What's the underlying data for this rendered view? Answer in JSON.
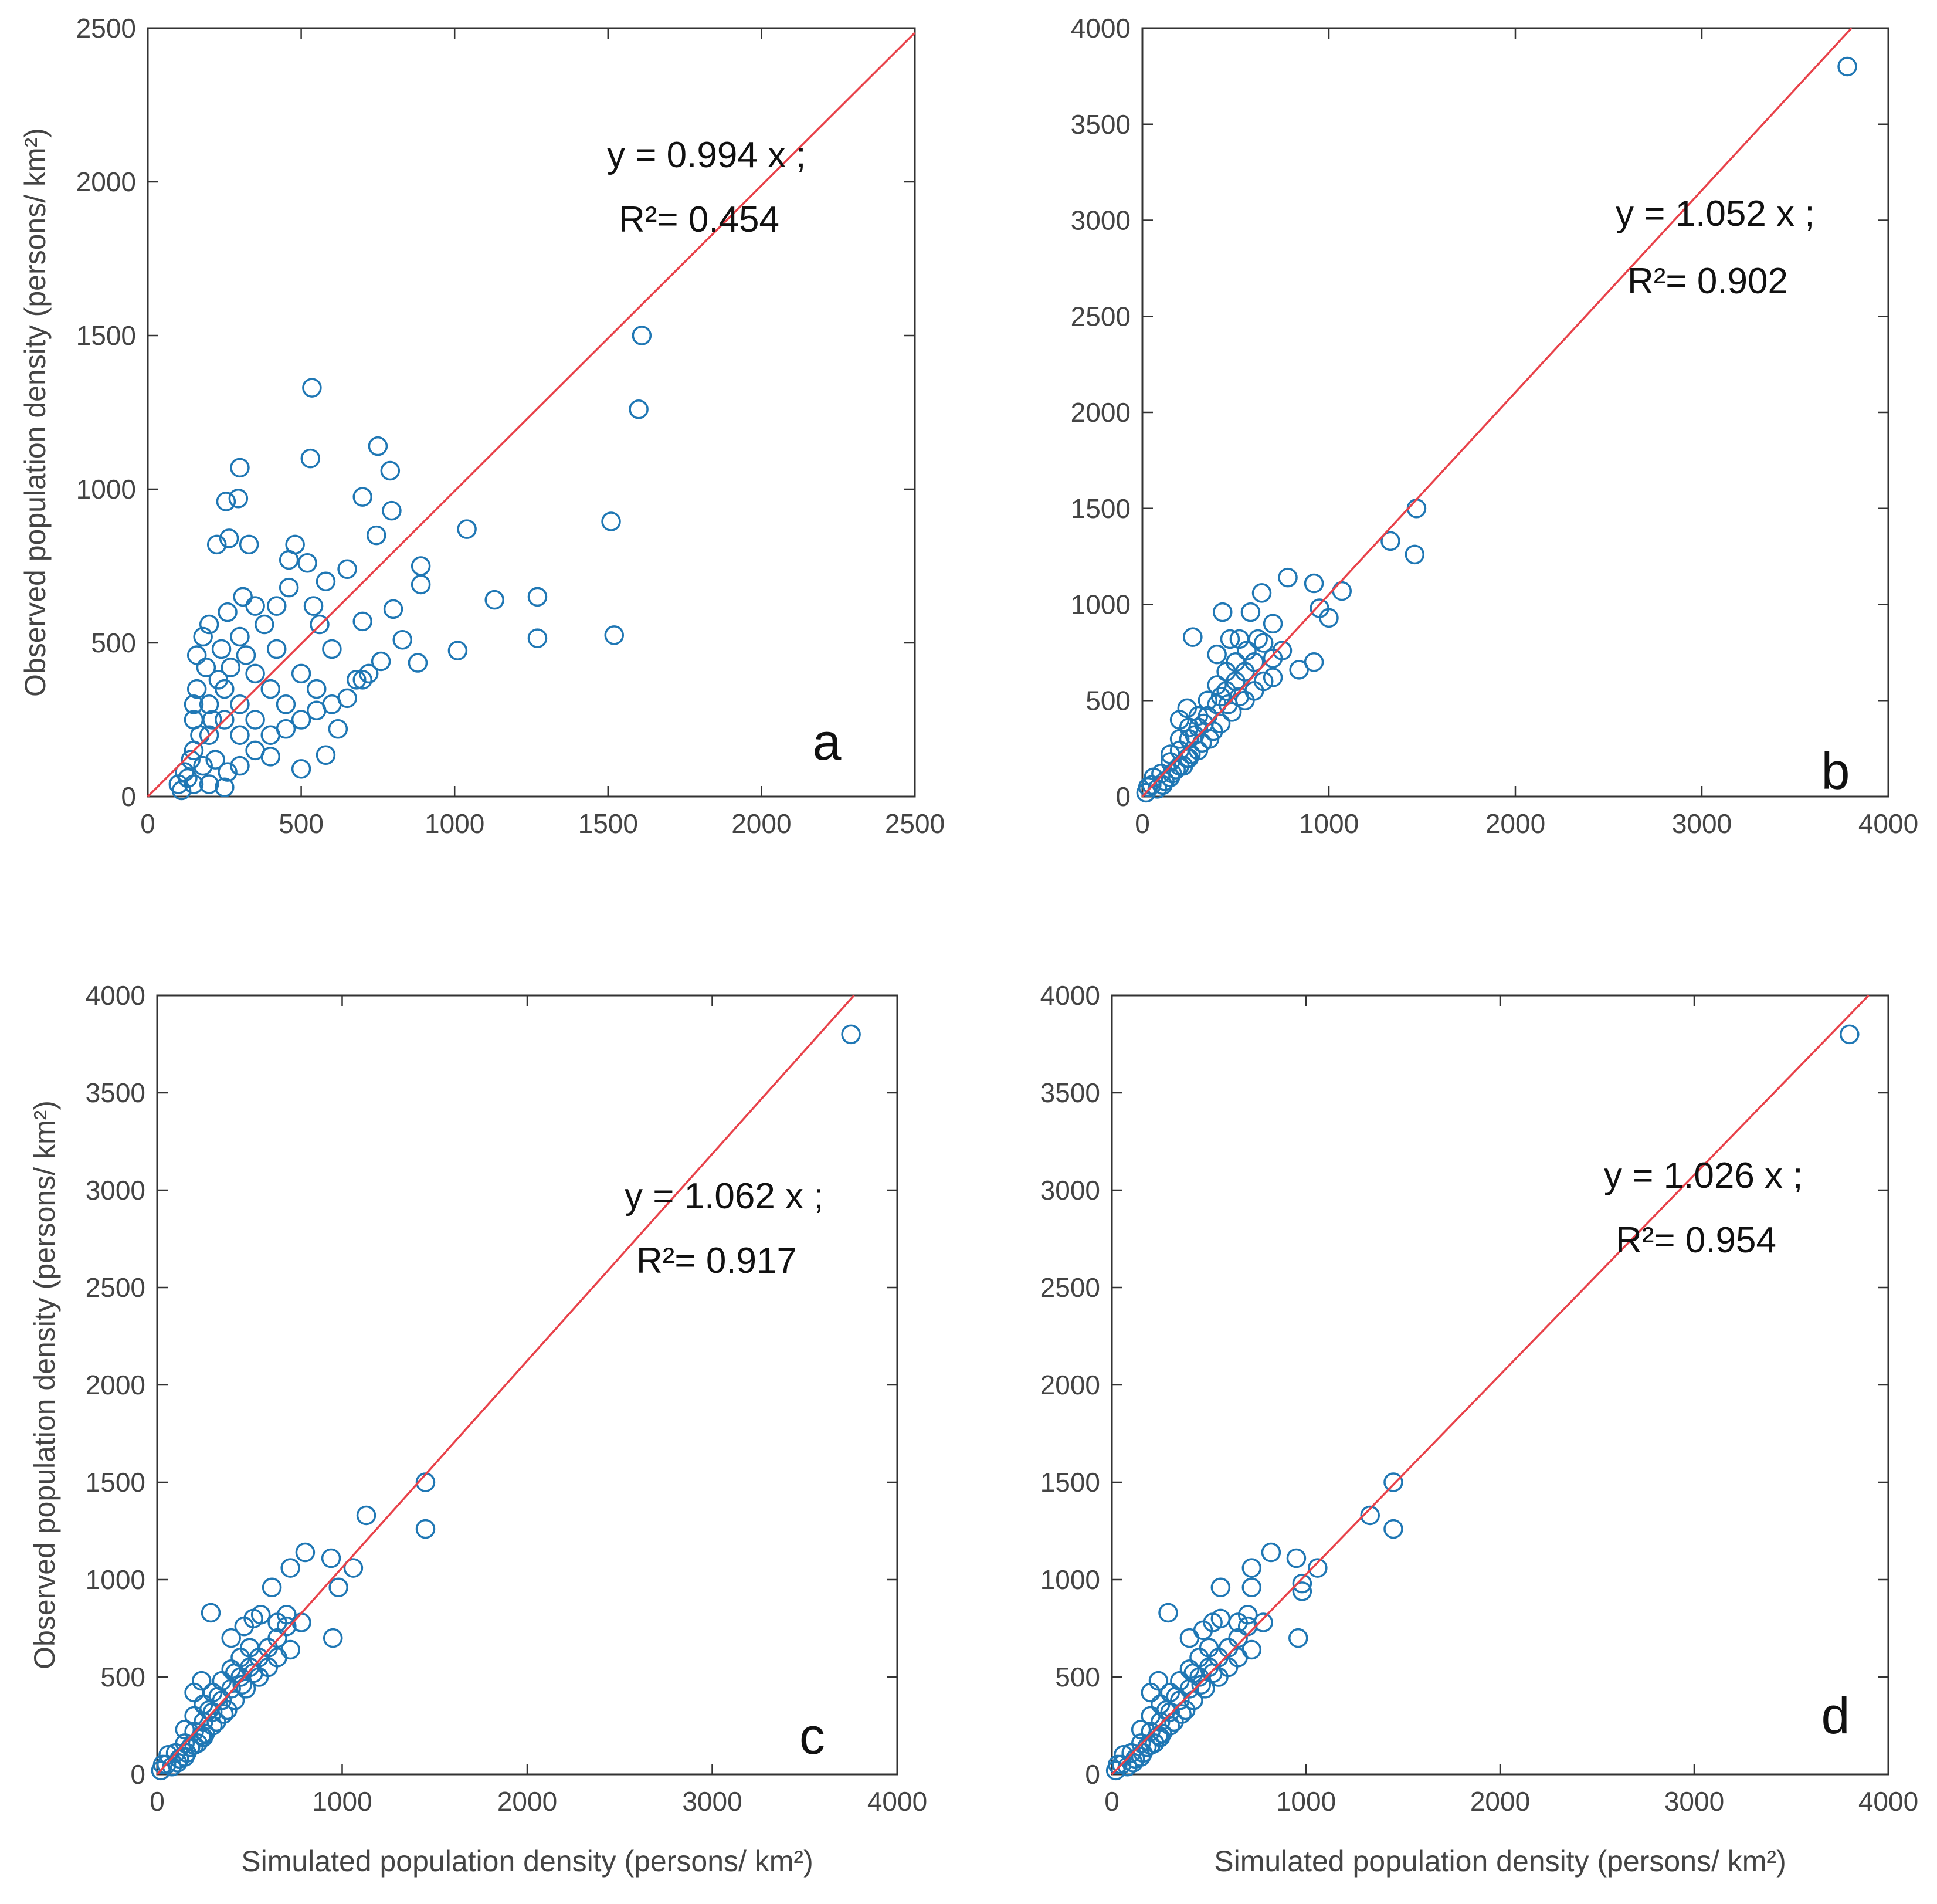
{
  "colors": {
    "marker": "#1f77b4",
    "fit_line": "#e8424a",
    "axes": "#333333"
  },
  "chart_data": [
    {
      "type": "scatter",
      "panel_label": "a",
      "xlim": [
        0,
        2500
      ],
      "ylim": [
        0,
        2500
      ],
      "xticks": [
        "0",
        "500",
        "1000",
        "1500",
        "2000",
        "2500"
      ],
      "yticks": [
        "0",
        "500",
        "1000",
        "1500",
        "2000",
        "2500"
      ],
      "xlabel": "",
      "ylabel": "Observed population density (persons/ km²)",
      "equation": "y = 0.994 x ;",
      "r2": "R²= 0.454",
      "fit_slope": 0.994,
      "points": [
        [
          535,
          1330
        ],
        [
          530,
          1100
        ],
        [
          300,
          1070
        ],
        [
          255,
          960
        ],
        [
          295,
          970
        ],
        [
          225,
          820
        ],
        [
          265,
          840
        ],
        [
          330,
          820
        ],
        [
          750,
          1140
        ],
        [
          790,
          1060
        ],
        [
          700,
          975
        ],
        [
          795,
          930
        ],
        [
          745,
          850
        ],
        [
          1040,
          870
        ],
        [
          890,
          750
        ],
        [
          890,
          690
        ],
        [
          1510,
          895
        ],
        [
          1610,
          1500
        ],
        [
          1600,
          1260
        ],
        [
          1520,
          525
        ],
        [
          1270,
          650
        ],
        [
          1270,
          515
        ],
        [
          1130,
          640
        ],
        [
          1010,
          475
        ],
        [
          880,
          435
        ],
        [
          830,
          510
        ],
        [
          800,
          610
        ],
        [
          700,
          570
        ],
        [
          700,
          380
        ],
        [
          580,
          135
        ],
        [
          500,
          90
        ],
        [
          400,
          130
        ],
        [
          480,
          820
        ],
        [
          460,
          770
        ],
        [
          520,
          760
        ],
        [
          580,
          700
        ],
        [
          650,
          740
        ],
        [
          600,
          480
        ],
        [
          420,
          480
        ],
        [
          350,
          620
        ],
        [
          300,
          520
        ],
        [
          240,
          480
        ],
        [
          190,
          420
        ],
        [
          160,
          350
        ],
        [
          150,
          300
        ],
        [
          200,
          300
        ],
        [
          250,
          350
        ],
        [
          300,
          300
        ],
        [
          350,
          400
        ],
        [
          400,
          350
        ],
        [
          450,
          300
        ],
        [
          500,
          400
        ],
        [
          550,
          350
        ],
        [
          200,
          200
        ],
        [
          250,
          250
        ],
        [
          150,
          150
        ],
        [
          300,
          200
        ],
        [
          350,
          250
        ],
        [
          180,
          100
        ],
        [
          220,
          120
        ],
        [
          260,
          80
        ],
        [
          130,
          60
        ],
        [
          150,
          40
        ],
        [
          200,
          40
        ],
        [
          250,
          30
        ],
        [
          140,
          120
        ],
        [
          170,
          200
        ],
        [
          210,
          250
        ],
        [
          230,
          380
        ],
        [
          270,
          420
        ],
        [
          320,
          460
        ],
        [
          380,
          560
        ],
        [
          420,
          620
        ],
        [
          460,
          680
        ],
        [
          180,
          520
        ],
        [
          160,
          460
        ],
        [
          200,
          560
        ],
        [
          260,
          600
        ],
        [
          310,
          650
        ],
        [
          150,
          250
        ],
        [
          120,
          80
        ],
        [
          100,
          40
        ],
        [
          110,
          20
        ],
        [
          300,
          100
        ],
        [
          350,
          150
        ],
        [
          400,
          200
        ],
        [
          450,
          220
        ],
        [
          500,
          250
        ],
        [
          550,
          280
        ],
        [
          600,
          300
        ],
        [
          650,
          320
        ],
        [
          720,
          400
        ],
        [
          760,
          440
        ],
        [
          620,
          220
        ],
        [
          680,
          380
        ],
        [
          560,
          560
        ],
        [
          540,
          620
        ]
      ]
    },
    {
      "type": "scatter",
      "panel_label": "b",
      "xlim": [
        0,
        4000
      ],
      "ylim": [
        0,
        4000
      ],
      "xticks": [
        "0",
        "1000",
        "2000",
        "3000",
        "4000"
      ],
      "yticks": [
        "0",
        "500",
        "1000",
        "1500",
        "2000",
        "2500",
        "3000",
        "3500",
        "4000"
      ],
      "xlabel": "",
      "ylabel": "",
      "equation": "y = 1.052 x ;",
      "r2": "R²= 0.902",
      "fit_slope": 1.052,
      "points": [
        [
          3780,
          3800
        ],
        [
          1470,
          1500
        ],
        [
          1460,
          1260
        ],
        [
          1330,
          1330
        ],
        [
          1070,
          1070
        ],
        [
          1000,
          930
        ],
        [
          920,
          1110
        ],
        [
          780,
          1140
        ],
        [
          950,
          980
        ],
        [
          920,
          700
        ],
        [
          840,
          660
        ],
        [
          640,
          1060
        ],
        [
          580,
          960
        ],
        [
          430,
          960
        ],
        [
          270,
          830
        ],
        [
          620,
          820
        ],
        [
          700,
          900
        ],
        [
          600,
          700
        ],
        [
          550,
          650
        ],
        [
          500,
          600
        ],
        [
          450,
          550
        ],
        [
          400,
          480
        ],
        [
          350,
          420
        ],
        [
          300,
          360
        ],
        [
          250,
          300
        ],
        [
          200,
          240
        ],
        [
          150,
          180
        ],
        [
          100,
          120
        ],
        [
          50,
          60
        ],
        [
          20,
          20
        ],
        [
          550,
          500
        ],
        [
          480,
          440
        ],
        [
          420,
          380
        ],
        [
          360,
          300
        ],
        [
          300,
          240
        ],
        [
          240,
          200
        ],
        [
          180,
          140
        ],
        [
          120,
          80
        ],
        [
          80,
          40
        ],
        [
          500,
          700
        ],
        [
          450,
          650
        ],
        [
          400,
          580
        ],
        [
          350,
          500
        ],
        [
          300,
          420
        ],
        [
          250,
          360
        ],
        [
          200,
          300
        ],
        [
          150,
          220
        ],
        [
          650,
          600
        ],
        [
          600,
          550
        ],
        [
          520,
          520
        ],
        [
          460,
          480
        ],
        [
          380,
          340
        ],
        [
          320,
          280
        ],
        [
          260,
          220
        ],
        [
          220,
          160
        ],
        [
          160,
          120
        ],
        [
          110,
          60
        ],
        [
          700,
          720
        ],
        [
          560,
          760
        ],
        [
          520,
          820
        ],
        [
          470,
          820
        ],
        [
          400,
          740
        ],
        [
          240,
          460
        ],
        [
          200,
          400
        ],
        [
          60,
          100
        ],
        [
          30,
          50
        ],
        [
          150,
          100
        ],
        [
          200,
          160
        ],
        [
          250,
          200
        ],
        [
          700,
          620
        ],
        [
          750,
          760
        ],
        [
          650,
          800
        ],
        [
          420,
          520
        ],
        [
          330,
          380
        ],
        [
          280,
          320
        ]
      ]
    },
    {
      "type": "scatter",
      "panel_label": "c",
      "xlim": [
        0,
        4000
      ],
      "ylim": [
        0,
        4000
      ],
      "xticks": [
        "0",
        "1000",
        "2000",
        "3000",
        "4000"
      ],
      "yticks": [
        "0",
        "500",
        "1000",
        "1500",
        "2000",
        "2500",
        "3000",
        "3500",
        "4000"
      ],
      "xlabel": "Simulated population density (persons/ km²)",
      "ylabel": "Observed population density (persons/ km²)",
      "equation": "y = 1.062 x ;",
      "r2": "R²= 0.917",
      "fit_slope": 1.062,
      "points": [
        [
          3750,
          3800
        ],
        [
          1450,
          1500
        ],
        [
          1450,
          1260
        ],
        [
          1130,
          1330
        ],
        [
          1060,
          1060
        ],
        [
          980,
          960
        ],
        [
          950,
          700
        ],
        [
          940,
          1110
        ],
        [
          800,
          1140
        ],
        [
          720,
          1060
        ],
        [
          620,
          960
        ],
        [
          290,
          830
        ],
        [
          700,
          820
        ],
        [
          650,
          700
        ],
        [
          600,
          650
        ],
        [
          550,
          600
        ],
        [
          500,
          550
        ],
        [
          450,
          500
        ],
        [
          400,
          440
        ],
        [
          350,
          380
        ],
        [
          300,
          320
        ],
        [
          250,
          270
        ],
        [
          200,
          220
        ],
        [
          150,
          160
        ],
        [
          100,
          110
        ],
        [
          50,
          50
        ],
        [
          20,
          20
        ],
        [
          550,
          500
        ],
        [
          480,
          440
        ],
        [
          420,
          380
        ],
        [
          360,
          310
        ],
        [
          300,
          250
        ],
        [
          240,
          200
        ],
        [
          180,
          140
        ],
        [
          120,
          80
        ],
        [
          80,
          40
        ],
        [
          500,
          650
        ],
        [
          450,
          600
        ],
        [
          400,
          540
        ],
        [
          350,
          480
        ],
        [
          300,
          420
        ],
        [
          250,
          360
        ],
        [
          200,
          300
        ],
        [
          150,
          230
        ],
        [
          650,
          600
        ],
        [
          600,
          550
        ],
        [
          520,
          520
        ],
        [
          460,
          460
        ],
        [
          380,
          330
        ],
        [
          320,
          270
        ],
        [
          260,
          210
        ],
        [
          220,
          160
        ],
        [
          160,
          110
        ],
        [
          110,
          60
        ],
        [
          700,
          760
        ],
        [
          560,
          820
        ],
        [
          520,
          800
        ],
        [
          470,
          760
        ],
        [
          400,
          700
        ],
        [
          240,
          480
        ],
        [
          200,
          420
        ],
        [
          60,
          100
        ],
        [
          30,
          50
        ],
        [
          150,
          90
        ],
        [
          200,
          150
        ],
        [
          250,
          190
        ],
        [
          720,
          640
        ],
        [
          780,
          780
        ],
        [
          650,
          780
        ],
        [
          420,
          520
        ],
        [
          330,
          400
        ],
        [
          280,
          330
        ]
      ]
    },
    {
      "type": "scatter",
      "panel_label": "d",
      "xlim": [
        0,
        4000
      ],
      "ylim": [
        0,
        4000
      ],
      "xticks": [
        "0",
        "1000",
        "2000",
        "3000",
        "4000"
      ],
      "yticks": [
        "0",
        "500",
        "1000",
        "1500",
        "2000",
        "2500",
        "3000",
        "3500",
        "4000"
      ],
      "xlabel": "Simulated population density (persons/ km²)",
      "ylabel": "",
      "equation": "y = 1.026 x ;",
      "r2": "R²= 0.954",
      "fit_slope": 1.026,
      "points": [
        [
          3800,
          3800
        ],
        [
          1450,
          1500
        ],
        [
          1450,
          1260
        ],
        [
          1330,
          1330
        ],
        [
          1060,
          1060
        ],
        [
          980,
          980
        ],
        [
          980,
          940
        ],
        [
          960,
          700
        ],
        [
          950,
          1110
        ],
        [
          820,
          1140
        ],
        [
          720,
          1060
        ],
        [
          720,
          960
        ],
        [
          560,
          960
        ],
        [
          290,
          830
        ],
        [
          700,
          820
        ],
        [
          650,
          700
        ],
        [
          600,
          650
        ],
        [
          550,
          600
        ],
        [
          500,
          550
        ],
        [
          450,
          500
        ],
        [
          400,
          440
        ],
        [
          350,
          380
        ],
        [
          300,
          320
        ],
        [
          250,
          270
        ],
        [
          200,
          220
        ],
        [
          150,
          160
        ],
        [
          100,
          110
        ],
        [
          50,
          50
        ],
        [
          20,
          20
        ],
        [
          550,
          500
        ],
        [
          480,
          440
        ],
        [
          420,
          380
        ],
        [
          360,
          310
        ],
        [
          300,
          250
        ],
        [
          240,
          200
        ],
        [
          180,
          140
        ],
        [
          120,
          80
        ],
        [
          80,
          40
        ],
        [
          500,
          650
        ],
        [
          450,
          600
        ],
        [
          400,
          540
        ],
        [
          350,
          480
        ],
        [
          300,
          420
        ],
        [
          250,
          360
        ],
        [
          200,
          300
        ],
        [
          150,
          230
        ],
        [
          650,
          600
        ],
        [
          600,
          550
        ],
        [
          520,
          520
        ],
        [
          460,
          460
        ],
        [
          380,
          330
        ],
        [
          320,
          270
        ],
        [
          260,
          210
        ],
        [
          220,
          160
        ],
        [
          160,
          110
        ],
        [
          110,
          60
        ],
        [
          700,
          760
        ],
        [
          560,
          800
        ],
        [
          520,
          780
        ],
        [
          470,
          740
        ],
        [
          400,
          700
        ],
        [
          240,
          480
        ],
        [
          200,
          420
        ],
        [
          60,
          100
        ],
        [
          30,
          50
        ],
        [
          150,
          90
        ],
        [
          200,
          150
        ],
        [
          250,
          190
        ],
        [
          720,
          640
        ],
        [
          780,
          780
        ],
        [
          650,
          780
        ],
        [
          420,
          520
        ],
        [
          330,
          400
        ],
        [
          280,
          330
        ]
      ]
    }
  ]
}
